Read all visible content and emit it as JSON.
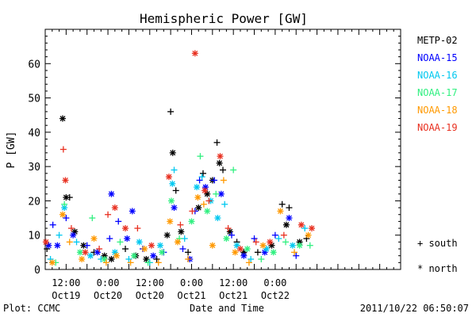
{
  "chart_data": {
    "type": "scatter",
    "title": "Hemispheric Power [GW]",
    "ylabel": "P [GW]",
    "xlabel": "Date and Time",
    "ylim": [
      0,
      70
    ],
    "xlim_hours": [
      -18,
      84
    ],
    "y_ticks": [
      0,
      10,
      20,
      30,
      40,
      50,
      60
    ],
    "x_ticks": [
      {
        "h": -12,
        "time": "12:00",
        "date": "Oct19"
      },
      {
        "h": 0,
        "time": "0:00",
        "date": "Oct20"
      },
      {
        "h": 12,
        "time": "12:00",
        "date": "Oct20"
      },
      {
        "h": 24,
        "time": "0:00",
        "date": "Oct21"
      },
      {
        "h": 36,
        "time": "12:00",
        "date": "Oct21"
      },
      {
        "h": 48,
        "time": "0:00",
        "date": "Oct22"
      }
    ],
    "x_reference": "Oct20 0:00 = 0 h",
    "series": [
      {
        "name": "METP-02",
        "color": "#000000",
        "points": [
          {
            "h": -17.5,
            "y": 6,
            "m": "+"
          },
          {
            "h": -13,
            "y": 44,
            "m": "*"
          },
          {
            "h": -12,
            "y": 21,
            "m": "*"
          },
          {
            "h": -11,
            "y": 21,
            "m": "+"
          },
          {
            "h": -9.5,
            "y": 11,
            "m": "*"
          },
          {
            "h": -7,
            "y": 7,
            "m": "*"
          },
          {
            "h": -4,
            "y": 5,
            "m": "+"
          },
          {
            "h": -1,
            "y": 4,
            "m": "*"
          },
          {
            "h": 1,
            "y": 3,
            "m": "*"
          },
          {
            "h": 5,
            "y": 6,
            "m": "+"
          },
          {
            "h": 8,
            "y": 4,
            "m": "*"
          },
          {
            "h": 11,
            "y": 3,
            "m": "*"
          },
          {
            "h": 14,
            "y": 3,
            "m": "+"
          },
          {
            "h": 17,
            "y": 10,
            "m": "*"
          },
          {
            "h": 18,
            "y": 46,
            "m": "+"
          },
          {
            "h": 18.6,
            "y": 34,
            "m": "*"
          },
          {
            "h": 19.5,
            "y": 23,
            "m": "+"
          },
          {
            "h": 21,
            "y": 11,
            "m": "*"
          },
          {
            "h": 23,
            "y": 5,
            "m": "+"
          },
          {
            "h": 26,
            "y": 18,
            "m": "*"
          },
          {
            "h": 27.3,
            "y": 28,
            "m": "+"
          },
          {
            "h": 28.5,
            "y": 22,
            "m": "*"
          },
          {
            "h": 30,
            "y": 26,
            "m": "*"
          },
          {
            "h": 31.3,
            "y": 37,
            "m": "+"
          },
          {
            "h": 32,
            "y": 31,
            "m": "*"
          },
          {
            "h": 33,
            "y": 29,
            "m": "+"
          },
          {
            "h": 35,
            "y": 11,
            "m": "*"
          },
          {
            "h": 37,
            "y": 8,
            "m": "+"
          },
          {
            "h": 39,
            "y": 5,
            "m": "*"
          },
          {
            "h": 43,
            "y": 5,
            "m": "+"
          },
          {
            "h": 47,
            "y": 7,
            "m": "*"
          },
          {
            "h": 50,
            "y": 19,
            "m": "+"
          },
          {
            "h": 51.2,
            "y": 13,
            "m": "*"
          },
          {
            "h": 52,
            "y": 18,
            "m": "+"
          },
          {
            "h": 55,
            "y": 8,
            "m": "*"
          },
          {
            "h": 57,
            "y": 9,
            "m": "+"
          }
        ]
      },
      {
        "name": "NOAA-15",
        "color": "#0000ff",
        "points": [
          {
            "h": -17,
            "y": 7,
            "m": "*"
          },
          {
            "h": -15.8,
            "y": 13,
            "m": "+"
          },
          {
            "h": -14.5,
            "y": 7,
            "m": "*"
          },
          {
            "h": -12,
            "y": 15,
            "m": "+"
          },
          {
            "h": -10,
            "y": 10,
            "m": "*"
          },
          {
            "h": -6,
            "y": 7,
            "m": "+"
          },
          {
            "h": -3,
            "y": 5,
            "m": "*"
          },
          {
            "h": 0.5,
            "y": 9,
            "m": "+"
          },
          {
            "h": 1,
            "y": 22,
            "m": "*"
          },
          {
            "h": 3,
            "y": 14,
            "m": "+"
          },
          {
            "h": 5.5,
            "y": 9,
            "m": "*"
          },
          {
            "h": 7,
            "y": 17,
            "m": "*"
          },
          {
            "h": 10,
            "y": 6,
            "m": "+"
          },
          {
            "h": 13,
            "y": 4,
            "m": "*"
          },
          {
            "h": 16,
            "y": 5,
            "m": "+"
          },
          {
            "h": 19,
            "y": 18,
            "m": "*"
          },
          {
            "h": 21.5,
            "y": 6,
            "m": "+"
          },
          {
            "h": 23.5,
            "y": 3,
            "m": "*"
          },
          {
            "h": 25,
            "y": 17,
            "m": "+"
          },
          {
            "h": 26.3,
            "y": 26,
            "m": "+"
          },
          {
            "h": 28,
            "y": 24,
            "m": "*"
          },
          {
            "h": 30.5,
            "y": 26,
            "m": "+"
          },
          {
            "h": 32.5,
            "y": 22,
            "m": "*"
          },
          {
            "h": 35.5,
            "y": 10,
            "m": "+"
          },
          {
            "h": 39,
            "y": 4,
            "m": "*"
          },
          {
            "h": 42,
            "y": 9,
            "m": "+"
          },
          {
            "h": 45,
            "y": 5,
            "m": "*"
          },
          {
            "h": 48,
            "y": 10,
            "m": "+"
          },
          {
            "h": 52,
            "y": 15,
            "m": "*"
          },
          {
            "h": 54,
            "y": 4,
            "m": "+"
          }
        ]
      },
      {
        "name": "NOAA-16",
        "color": "#00c8f0",
        "points": [
          {
            "h": -16.5,
            "y": 3,
            "m": "+"
          },
          {
            "h": -14,
            "y": 10,
            "m": "+"
          },
          {
            "h": -12.5,
            "y": 18,
            "m": "*"
          },
          {
            "h": -9,
            "y": 8,
            "m": "+"
          },
          {
            "h": -5,
            "y": 4,
            "m": "*"
          },
          {
            "h": -2,
            "y": 3,
            "m": "+"
          },
          {
            "h": 2,
            "y": 5,
            "m": "*"
          },
          {
            "h": 6,
            "y": 3,
            "m": "+"
          },
          {
            "h": 9,
            "y": 8,
            "m": "*"
          },
          {
            "h": 12,
            "y": 2,
            "m": "+"
          },
          {
            "h": 15,
            "y": 7,
            "m": "*"
          },
          {
            "h": 18.5,
            "y": 25,
            "m": "*"
          },
          {
            "h": 19,
            "y": 29,
            "m": "+"
          },
          {
            "h": 22,
            "y": 9,
            "m": "+"
          },
          {
            "h": 25.5,
            "y": 24,
            "m": "*"
          },
          {
            "h": 27,
            "y": 27,
            "m": "+"
          },
          {
            "h": 29.5,
            "y": 20,
            "m": "*"
          },
          {
            "h": 31.5,
            "y": 15,
            "m": "*"
          },
          {
            "h": 33.5,
            "y": 19,
            "m": "+"
          },
          {
            "h": 37,
            "y": 7,
            "m": "*"
          },
          {
            "h": 41,
            "y": 3,
            "m": "+"
          },
          {
            "h": 45.5,
            "y": 6,
            "m": "*"
          },
          {
            "h": 49,
            "y": 9,
            "m": "+"
          },
          {
            "h": 53,
            "y": 7,
            "m": "*"
          },
          {
            "h": 56.5,
            "y": 12,
            "m": "+"
          }
        ]
      },
      {
        "name": "NOAA-17",
        "color": "#30f080",
        "points": [
          {
            "h": -15,
            "y": 2,
            "m": "+"
          },
          {
            "h": -12.5,
            "y": 19,
            "m": "+"
          },
          {
            "h": -8,
            "y": 5,
            "m": "*"
          },
          {
            "h": -4.5,
            "y": 15,
            "m": "+"
          },
          {
            "h": -1,
            "y": 3,
            "m": "*"
          },
          {
            "h": 3.5,
            "y": 8,
            "m": "+"
          },
          {
            "h": 7.5,
            "y": 4,
            "m": "*"
          },
          {
            "h": 11.5,
            "y": 2,
            "m": "+"
          },
          {
            "h": 15.5,
            "y": 5,
            "m": "*"
          },
          {
            "h": 18.2,
            "y": 20,
            "m": "*"
          },
          {
            "h": 20.5,
            "y": 9,
            "m": "+"
          },
          {
            "h": 24,
            "y": 14,
            "m": "*"
          },
          {
            "h": 26.5,
            "y": 33,
            "m": "+"
          },
          {
            "h": 28.5,
            "y": 17,
            "m": "*"
          },
          {
            "h": 31,
            "y": 22,
            "m": "+"
          },
          {
            "h": 34,
            "y": 9,
            "m": "*"
          },
          {
            "h": 36,
            "y": 29,
            "m": "+"
          },
          {
            "h": 40,
            "y": 6,
            "m": "*"
          },
          {
            "h": 44,
            "y": 3,
            "m": "+"
          },
          {
            "h": 47.5,
            "y": 5,
            "m": "*"
          },
          {
            "h": 51,
            "y": 8,
            "m": "+"
          },
          {
            "h": 55,
            "y": 7,
            "m": "*"
          },
          {
            "h": 58,
            "y": 7,
            "m": "+"
          }
        ]
      },
      {
        "name": "NOAA-18",
        "color": "#ff9900",
        "points": [
          {
            "h": -16,
            "y": 2,
            "m": "*"
          },
          {
            "h": -13,
            "y": 16,
            "m": "*"
          },
          {
            "h": -11,
            "y": 8,
            "m": "+"
          },
          {
            "h": -7.5,
            "y": 3,
            "m": "*"
          },
          {
            "h": -4,
            "y": 9,
            "m": "*"
          },
          {
            "h": -0.5,
            "y": 2,
            "m": "+"
          },
          {
            "h": 2.5,
            "y": 4,
            "m": "*"
          },
          {
            "h": 6.5,
            "y": 2,
            "m": "+"
          },
          {
            "h": 10.5,
            "y": 6,
            "m": "*"
          },
          {
            "h": 14.5,
            "y": 2,
            "m": "+"
          },
          {
            "h": 17.8,
            "y": 14,
            "m": "*"
          },
          {
            "h": 20,
            "y": 8,
            "m": "*"
          },
          {
            "h": 23,
            "y": 3,
            "m": "+"
          },
          {
            "h": 25.8,
            "y": 21,
            "m": "*"
          },
          {
            "h": 27.5,
            "y": 19,
            "m": "+"
          },
          {
            "h": 30,
            "y": 7,
            "m": "*"
          },
          {
            "h": 33.2,
            "y": 26,
            "m": "+"
          },
          {
            "h": 36.5,
            "y": 5,
            "m": "*"
          },
          {
            "h": 40.5,
            "y": 2,
            "m": "+"
          },
          {
            "h": 44.5,
            "y": 7,
            "m": "*"
          },
          {
            "h": 49.5,
            "y": 17,
            "m": "*"
          },
          {
            "h": 53.5,
            "y": 5,
            "m": "+"
          },
          {
            "h": 57.5,
            "y": 10,
            "m": "*"
          }
        ]
      },
      {
        "name": "NOAA-19",
        "color": "#e83020",
        "points": [
          {
            "h": -17.8,
            "y": 8,
            "m": "*"
          },
          {
            "h": -12.8,
            "y": 35,
            "m": "+"
          },
          {
            "h": -12.2,
            "y": 26,
            "m": "*"
          },
          {
            "h": -10.5,
            "y": 12,
            "m": "+"
          },
          {
            "h": -6.5,
            "y": 5,
            "m": "*"
          },
          {
            "h": -2.5,
            "y": 6,
            "m": "+"
          },
          {
            "h": 0,
            "y": 16,
            "m": "+"
          },
          {
            "h": 2,
            "y": 18,
            "m": "*"
          },
          {
            "h": 5,
            "y": 12,
            "m": "*"
          },
          {
            "h": 8.5,
            "y": 12,
            "m": "+"
          },
          {
            "h": 12.5,
            "y": 7,
            "m": "*"
          },
          {
            "h": 17.5,
            "y": 27,
            "m": "*"
          },
          {
            "h": 20.8,
            "y": 13,
            "m": "+"
          },
          {
            "h": 24.2,
            "y": 17,
            "m": "+"
          },
          {
            "h": 25,
            "y": 63,
            "m": "*"
          },
          {
            "h": 27.8,
            "y": 23,
            "m": "*"
          },
          {
            "h": 29,
            "y": 20,
            "m": "+"
          },
          {
            "h": 32.2,
            "y": 33,
            "m": "*"
          },
          {
            "h": 34.5,
            "y": 12,
            "m": "+"
          },
          {
            "h": 38,
            "y": 6,
            "m": "*"
          },
          {
            "h": 42.5,
            "y": 8,
            "m": "+"
          },
          {
            "h": 46.5,
            "y": 8,
            "m": "*"
          },
          {
            "h": 50.5,
            "y": 10,
            "m": "+"
          },
          {
            "h": 55.5,
            "y": 13,
            "m": "*"
          },
          {
            "h": 58.5,
            "y": 12,
            "m": "*"
          }
        ]
      }
    ]
  },
  "legend": {
    "south_label": "+ south",
    "north_label": "* north"
  },
  "footer": {
    "plot_credit": "Plot: CCMC",
    "timestamp": "2011/10/22 06:50:07"
  }
}
